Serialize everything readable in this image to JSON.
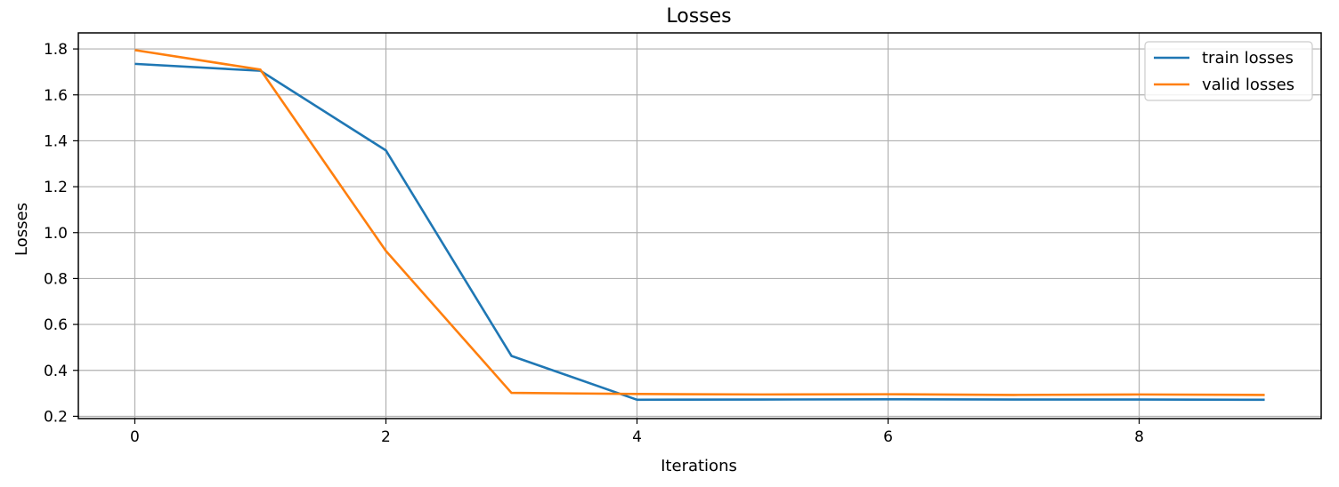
{
  "chart_data": {
    "type": "line",
    "title": "Losses",
    "xlabel": "Iterations",
    "ylabel": "Losses",
    "xlim": [
      -0.45,
      9.45
    ],
    "ylim": [
      0.19,
      1.87
    ],
    "xticks": [
      0,
      2,
      4,
      6,
      8
    ],
    "yticks": [
      0.2,
      0.4,
      0.6,
      0.8,
      1.0,
      1.2,
      1.4,
      1.6,
      1.8
    ],
    "grid": true,
    "legend_position": "top-right",
    "x": [
      0,
      1,
      2,
      3,
      4,
      5,
      6,
      7,
      8,
      9
    ],
    "series": [
      {
        "name": "train losses",
        "color": "#1f77b4",
        "values": [
          1.735,
          1.705,
          1.358,
          0.463,
          0.272,
          0.273,
          0.274,
          0.273,
          0.273,
          0.272
        ]
      },
      {
        "name": "valid losses",
        "color": "#ff7f0e",
        "values": [
          1.795,
          1.71,
          0.92,
          0.302,
          0.297,
          0.295,
          0.296,
          0.293,
          0.295,
          0.293
        ]
      }
    ]
  }
}
